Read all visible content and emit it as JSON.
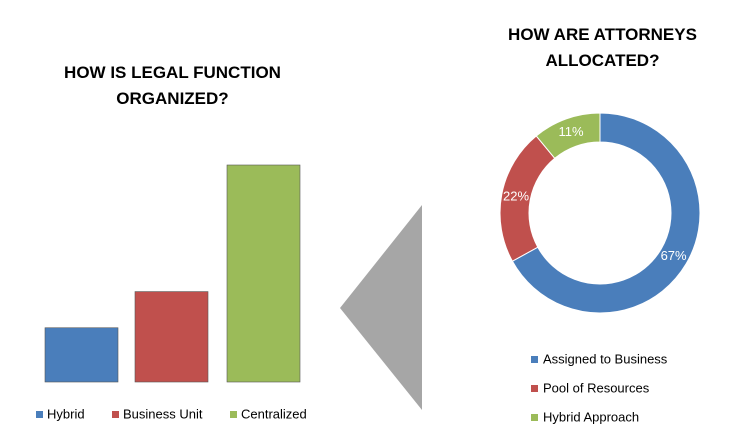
{
  "chart_data": [
    {
      "type": "bar",
      "title": "HOW IS LEGAL FUNCTION ORGANIZED?",
      "categories": [
        "Hybrid",
        "Business Unit",
        "Centralized"
      ],
      "values": [
        15,
        25,
        60
      ],
      "colors": [
        "#4a7ebb",
        "#c0504d",
        "#9bbb59"
      ]
    },
    {
      "type": "donut",
      "title": "HOW ARE ATTORNEYS ALLOCATED?",
      "categories": [
        "Assigned to Business",
        "Pool of Resources",
        "Hybrid Approach"
      ],
      "values": [
        67,
        22,
        11
      ],
      "value_labels": [
        "67%",
        "22%",
        "11%"
      ],
      "colors": [
        "#4a7ebb",
        "#c0504d",
        "#9bbb59"
      ]
    }
  ]
}
